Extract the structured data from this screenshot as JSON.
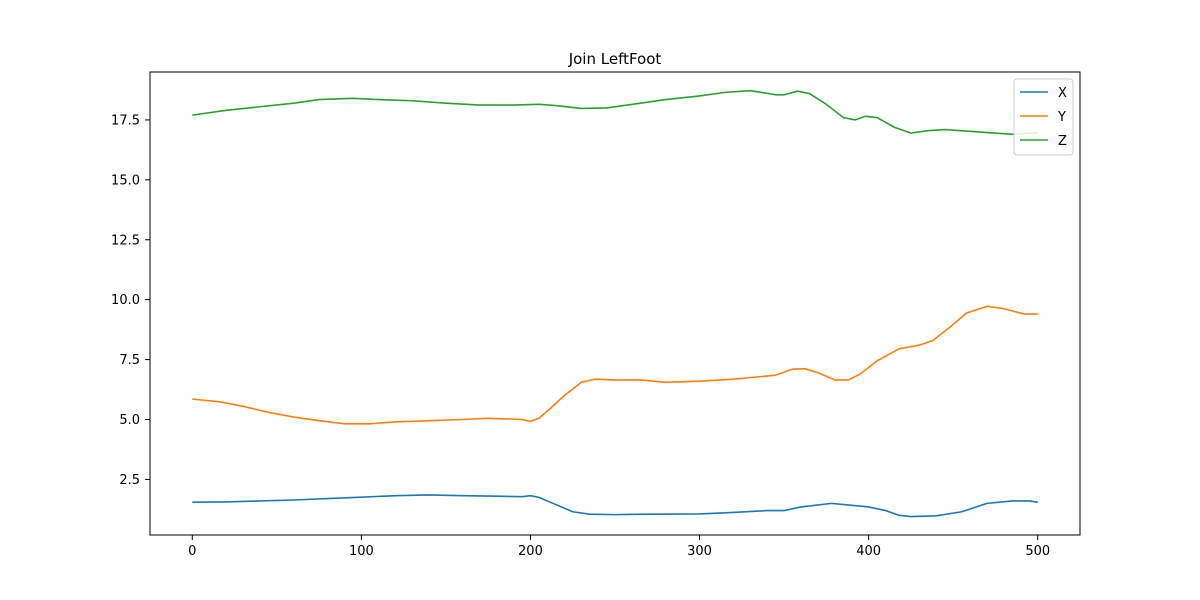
{
  "chart_data": {
    "type": "line",
    "title": "Join LeftFoot",
    "xlabel": "",
    "ylabel": "",
    "xlim": [
      -25,
      525
    ],
    "ylim": [
      0.18,
      19.5
    ],
    "xticks": [
      0,
      100,
      200,
      300,
      400,
      500
    ],
    "yticks": [
      2.5,
      5.0,
      7.5,
      10.0,
      12.5,
      15.0,
      17.5
    ],
    "xtick_labels": [
      "0",
      "100",
      "200",
      "300",
      "400",
      "500"
    ],
    "ytick_labels": [
      "2.5",
      "5.0",
      "7.5",
      "10.0",
      "12.5",
      "15.0",
      "17.5"
    ],
    "grid": false,
    "legend_position": "top-right",
    "legend_labels": [
      "X",
      "Y",
      "Z"
    ],
    "series": [
      {
        "name": "X",
        "color": "#1f77b4",
        "points": [
          [
            0,
            1.55
          ],
          [
            20,
            1.56
          ],
          [
            40,
            1.6
          ],
          [
            60,
            1.64
          ],
          [
            80,
            1.7
          ],
          [
            100,
            1.76
          ],
          [
            120,
            1.82
          ],
          [
            140,
            1.85
          ],
          [
            160,
            1.82
          ],
          [
            180,
            1.8
          ],
          [
            195,
            1.78
          ],
          [
            200,
            1.82
          ],
          [
            205,
            1.75
          ],
          [
            215,
            1.45
          ],
          [
            225,
            1.15
          ],
          [
            235,
            1.05
          ],
          [
            250,
            1.03
          ],
          [
            270,
            1.05
          ],
          [
            300,
            1.06
          ],
          [
            320,
            1.12
          ],
          [
            340,
            1.2
          ],
          [
            350,
            1.2
          ],
          [
            360,
            1.35
          ],
          [
            378,
            1.5
          ],
          [
            390,
            1.42
          ],
          [
            400,
            1.35
          ],
          [
            410,
            1.2
          ],
          [
            418,
            1.0
          ],
          [
            425,
            0.95
          ],
          [
            440,
            0.98
          ],
          [
            455,
            1.15
          ],
          [
            470,
            1.5
          ],
          [
            485,
            1.6
          ],
          [
            495,
            1.6
          ],
          [
            500,
            1.55
          ]
        ]
      },
      {
        "name": "Y",
        "color": "#ff7f0e",
        "points": [
          [
            0,
            5.85
          ],
          [
            15,
            5.75
          ],
          [
            30,
            5.55
          ],
          [
            45,
            5.3
          ],
          [
            60,
            5.1
          ],
          [
            75,
            4.95
          ],
          [
            90,
            4.82
          ],
          [
            105,
            4.82
          ],
          [
            120,
            4.9
          ],
          [
            140,
            4.95
          ],
          [
            160,
            5.0
          ],
          [
            175,
            5.05
          ],
          [
            195,
            5.0
          ],
          [
            200,
            4.92
          ],
          [
            205,
            5.05
          ],
          [
            210,
            5.35
          ],
          [
            220,
            6.0
          ],
          [
            230,
            6.55
          ],
          [
            238,
            6.68
          ],
          [
            250,
            6.65
          ],
          [
            265,
            6.65
          ],
          [
            280,
            6.55
          ],
          [
            300,
            6.6
          ],
          [
            320,
            6.68
          ],
          [
            345,
            6.85
          ],
          [
            355,
            7.1
          ],
          [
            362,
            7.12
          ],
          [
            370,
            6.95
          ],
          [
            380,
            6.65
          ],
          [
            388,
            6.65
          ],
          [
            395,
            6.9
          ],
          [
            405,
            7.45
          ],
          [
            418,
            7.95
          ],
          [
            430,
            8.1
          ],
          [
            438,
            8.3
          ],
          [
            448,
            8.85
          ],
          [
            458,
            9.45
          ],
          [
            470,
            9.72
          ],
          [
            480,
            9.62
          ],
          [
            492,
            9.4
          ],
          [
            500,
            9.4
          ]
        ]
      },
      {
        "name": "Z",
        "color": "#2ca02c",
        "points": [
          [
            0,
            17.7
          ],
          [
            20,
            17.9
          ],
          [
            40,
            18.05
          ],
          [
            60,
            18.2
          ],
          [
            75,
            18.35
          ],
          [
            95,
            18.4
          ],
          [
            110,
            18.35
          ],
          [
            130,
            18.3
          ],
          [
            150,
            18.2
          ],
          [
            170,
            18.12
          ],
          [
            190,
            18.12
          ],
          [
            205,
            18.15
          ],
          [
            215,
            18.1
          ],
          [
            230,
            17.98
          ],
          [
            245,
            18.0
          ],
          [
            265,
            18.2
          ],
          [
            280,
            18.35
          ],
          [
            300,
            18.5
          ],
          [
            315,
            18.65
          ],
          [
            330,
            18.72
          ],
          [
            345,
            18.55
          ],
          [
            350,
            18.55
          ],
          [
            358,
            18.7
          ],
          [
            365,
            18.6
          ],
          [
            375,
            18.15
          ],
          [
            385,
            17.6
          ],
          [
            392,
            17.5
          ],
          [
            398,
            17.65
          ],
          [
            405,
            17.6
          ],
          [
            415,
            17.2
          ],
          [
            425,
            16.95
          ],
          [
            435,
            17.05
          ],
          [
            445,
            17.1
          ],
          [
            465,
            17.0
          ],
          [
            485,
            16.9
          ],
          [
            495,
            16.95
          ],
          [
            500,
            16.95
          ]
        ]
      }
    ]
  }
}
